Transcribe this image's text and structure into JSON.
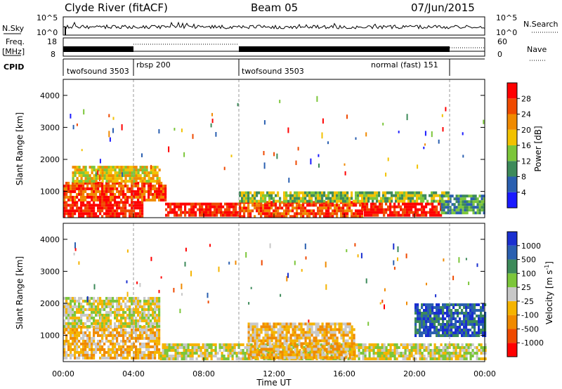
{
  "header": {
    "station": "Clyde River (fitACF)",
    "beam": "Beam 05",
    "date": "07/Jun/2015"
  },
  "strips": {
    "nsky_label": "N.Sky",
    "nsky_ticks": [
      "10^5",
      "10^0"
    ],
    "nsearch_label": "N.Search",
    "freq_label": "Freq.",
    "freq_unit": "[MHz]",
    "freq_ticks": [
      "18",
      "8"
    ],
    "nave_label": "Nave",
    "nave_ticks": [
      "60",
      "0"
    ],
    "cpid_label": "CPID",
    "cpid_segments": [
      {
        "label": "twofsound 3503",
        "start": 0.0
      },
      {
        "label": "rbsp 200",
        "start": 4.0
      },
      {
        "label": "twofsound 3503",
        "start": 10.0
      },
      {
        "label": "normal (fast) 151",
        "start": 16.0,
        "end": 22.0
      }
    ]
  },
  "power_panel": {
    "ylabel": "Slant Range [km]",
    "yticks": [
      "1000",
      "2000",
      "3000",
      "4000"
    ],
    "colorbar_label": "Power [dB]",
    "colorbar_ticks": [
      "4",
      "8",
      "12",
      "16",
      "20",
      "24",
      "28"
    ],
    "colors": [
      "#1a1aff",
      "#2a5fb0",
      "#3d8a5a",
      "#7cc63a",
      "#f2c200",
      "#f08a00",
      "#ef4a00",
      "#ff0000"
    ]
  },
  "velocity_panel": {
    "ylabel": "Slant Range [km]",
    "yticks": [
      "1000",
      "2000",
      "3000",
      "4000"
    ],
    "colorbar_label": "Velocity [m s",
    "colorbar_label_sup": "-1",
    "colorbar_ticks": [
      "-1000",
      "-500",
      "-100",
      "-25",
      "25",
      "100",
      "500",
      "1000"
    ],
    "colors": [
      "#ff0000",
      "#ef4a00",
      "#f08a00",
      "#f5b400",
      "#c8c8c8",
      "#7cc63a",
      "#3d8a5a",
      "#2a5fb0",
      "#1a2fd0"
    ]
  },
  "xaxis": {
    "ticks": [
      "00:00",
      "04:00",
      "08:00",
      "12:00",
      "16:00",
      "20:00",
      "00:00"
    ],
    "label": "Time UT"
  },
  "chart_data": {
    "type": "heatmap",
    "title": "Clyde River (fitACF)",
    "subtitle": "Beam 05",
    "date": "07/Jun/2015",
    "xlabel": "Time UT",
    "ylabel": "Slant Range [km]",
    "xlim_hours": [
      0,
      24
    ],
    "ylim_km": [
      180,
      4500
    ],
    "panels": [
      {
        "name": "Power [dB]",
        "colorbar_ticks": [
          4,
          8,
          12,
          16,
          20,
          24,
          28
        ],
        "bands": [
          {
            "t_start": 0.0,
            "t_end": 4.5,
            "r_min": 250,
            "r_max": 700,
            "value": 28
          },
          {
            "t_start": 0.0,
            "t_end": 5.8,
            "r_min": 700,
            "r_max": 1300,
            "value": 24
          },
          {
            "t_start": 0.5,
            "t_end": 5.5,
            "r_min": 1300,
            "r_max": 1800,
            "value": 16
          },
          {
            "t_start": 5.8,
            "t_end": 10.0,
            "r_min": 250,
            "r_max": 650,
            "value": 28
          },
          {
            "t_start": 10.0,
            "t_end": 17.0,
            "r_min": 250,
            "r_max": 700,
            "value": 24
          },
          {
            "t_start": 10.0,
            "t_end": 22.0,
            "r_min": 700,
            "r_max": 1000,
            "value": 12
          },
          {
            "t_start": 17.0,
            "t_end": 21.5,
            "r_min": 250,
            "r_max": 650,
            "value": 28
          },
          {
            "t_start": 21.5,
            "t_end": 24.0,
            "r_min": 300,
            "r_max": 900,
            "value": 8
          }
        ]
      },
      {
        "name": "Velocity [m s-1]",
        "colorbar_ticks": [
          -1000,
          -500,
          -100,
          -25,
          25,
          100,
          500,
          1000
        ],
        "bands": [
          {
            "t_start": 0.0,
            "t_end": 5.5,
            "r_min": 300,
            "r_max": 1300,
            "value": -100
          },
          {
            "t_start": 0.0,
            "t_end": 5.5,
            "r_min": 1300,
            "r_max": 2200,
            "value": 0
          },
          {
            "t_start": 5.5,
            "t_end": 24.0,
            "r_min": 250,
            "r_max": 750,
            "value": 0
          },
          {
            "t_start": 10.5,
            "t_end": 16.5,
            "r_min": 300,
            "r_max": 1400,
            "value": -100
          },
          {
            "t_start": 20.0,
            "t_end": 24.0,
            "r_min": 1000,
            "r_max": 2000,
            "value": 500
          }
        ]
      }
    ]
  }
}
